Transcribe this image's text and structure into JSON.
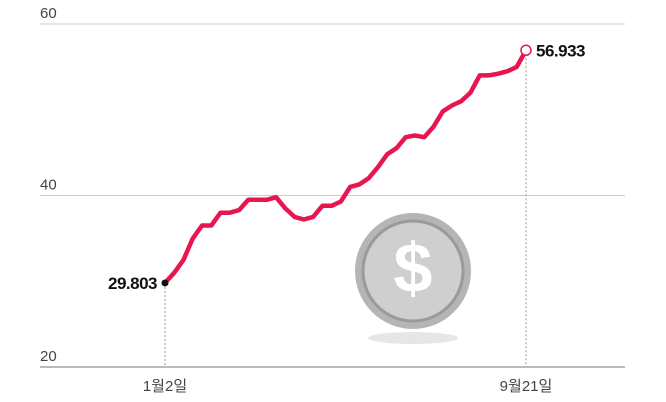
{
  "chart_data": {
    "type": "line",
    "categories": [
      "1월2일",
      null,
      null,
      null,
      null,
      null,
      null,
      null,
      null,
      null,
      null,
      null,
      null,
      null,
      null,
      null,
      null,
      null,
      null,
      null,
      null,
      null,
      null,
      null,
      null,
      null,
      null,
      null,
      null,
      null,
      null,
      null,
      null,
      null,
      null,
      null,
      null,
      null,
      null,
      "9월21일"
    ],
    "series": [
      {
        "color": "#e8164f",
        "values": [
          29.803,
          31,
          32.5,
          35,
          36.5,
          36.5,
          38,
          38,
          38.3,
          39.5,
          39.5,
          39.5,
          39.8,
          38.5,
          37.5,
          37.2,
          37.5,
          38.8,
          38.8,
          39.3,
          41,
          41.3,
          42,
          43.3,
          44.8,
          45.5,
          46.8,
          47,
          46.8,
          48,
          49.8,
          50.5,
          51,
          52,
          54,
          54,
          54.2,
          54.5,
          55,
          56.933
        ]
      }
    ],
    "ylim": [
      20,
      60
    ],
    "yticks": [
      20,
      40,
      60
    ],
    "grid": true
  }
}
